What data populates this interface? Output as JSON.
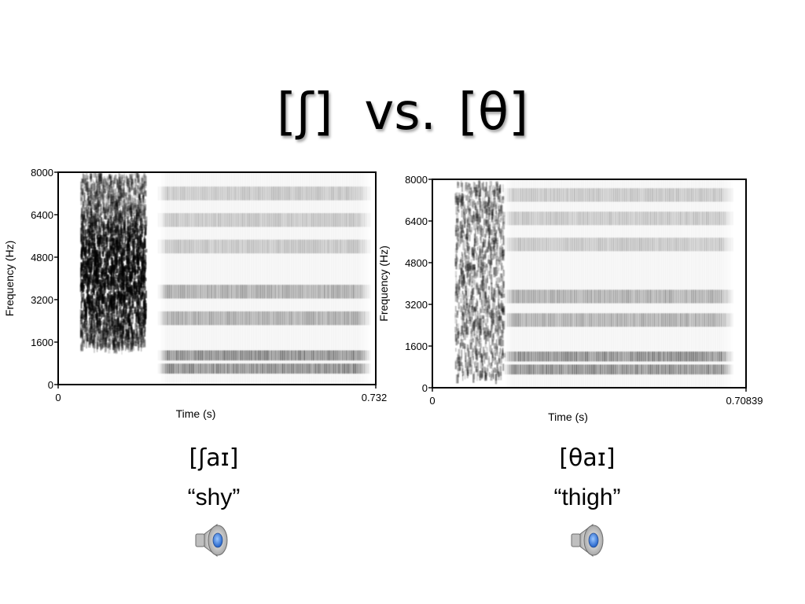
{
  "slide": {
    "title_left": "[ʃ]",
    "title_vs": "vs.",
    "title_right": "[θ]"
  },
  "chart_data": [
    {
      "type": "heatmap",
      "title": "",
      "xlabel": "Time (s)",
      "ylabel": "Frequency (Hz)",
      "xlim": [
        0,
        0.732
      ],
      "ylim": [
        0,
        8000
      ],
      "x_tick_labels": [
        "0",
        "0.732"
      ],
      "y_tick_labels": [
        "0",
        "1600",
        "3200",
        "4800",
        "6400",
        "8000"
      ],
      "y_ticks": [
        0,
        1600,
        3200,
        4800,
        6400,
        8000
      ],
      "fricative_interval": [
        0.05,
        0.2
      ],
      "fricative_band_hz": [
        1500,
        8000
      ],
      "fricative_peak_hz": 4200,
      "vowel_interval": [
        0.23,
        0.72
      ],
      "formant_bands_hz": [
        600,
        1100,
        2500,
        3500,
        5200,
        6200,
        7200
      ]
    },
    {
      "type": "heatmap",
      "title": "",
      "xlabel": "Time (s)",
      "ylabel": "Frequency (Hz)",
      "xlim": [
        0,
        0.70839
      ],
      "ylim": [
        0,
        8000
      ],
      "x_tick_labels": [
        "0",
        "0.70839"
      ],
      "y_tick_labels": [
        "0",
        "1600",
        "3200",
        "4800",
        "6400",
        "8000"
      ],
      "y_ticks": [
        0,
        1600,
        3200,
        4800,
        6400,
        8000
      ],
      "fricative_interval": [
        0.05,
        0.16
      ],
      "fricative_band_hz": [
        500,
        8000
      ],
      "fricative_peak_hz": null,
      "vowel_interval": [
        0.16,
        0.68
      ],
      "formant_bands_hz": [
        700,
        1200,
        2600,
        3500,
        5500,
        6500,
        7400
      ]
    }
  ],
  "left": {
    "ipa": "[ʃaɪ]",
    "gloss": "“shy”"
  },
  "right": {
    "ipa": "[θaɪ]",
    "gloss": "“thigh”"
  },
  "icons": {
    "audio": "speaker-icon",
    "accent": "#2f6fd6"
  }
}
